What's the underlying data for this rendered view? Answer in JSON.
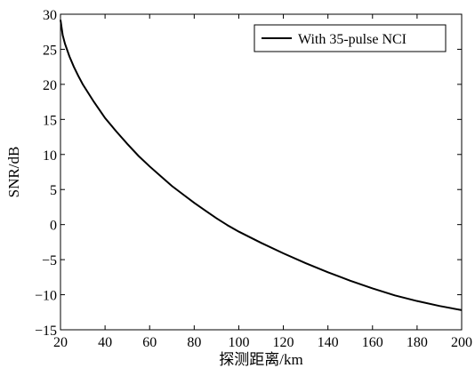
{
  "chart_data": {
    "type": "line",
    "title": "",
    "xlabel": "探测距离/km",
    "ylabel": "SNR/dB",
    "xlim": [
      20,
      200
    ],
    "ylim": [
      -15,
      30
    ],
    "x_ticks": [
      20,
      40,
      60,
      80,
      100,
      120,
      140,
      160,
      180,
      200
    ],
    "y_ticks": [
      -15,
      -10,
      -5,
      0,
      5,
      10,
      15,
      20,
      25,
      30
    ],
    "x_tick_labels": [
      "20",
      "40",
      "60",
      "80",
      "100",
      "120",
      "140",
      "160",
      "180",
      "200"
    ],
    "y_tick_labels": [
      "−15",
      "−10",
      "−5",
      "0",
      "5",
      "10",
      "15",
      "20",
      "25",
      "30"
    ],
    "grid": false,
    "legend_position": "top-right",
    "series": [
      {
        "name": "With 35-pulse NCI",
        "color": "#000000",
        "x": [
          20,
          21,
          22,
          24,
          26,
          28,
          30,
          35,
          40,
          45,
          50,
          55,
          60,
          65,
          70,
          75,
          80,
          85,
          90,
          95,
          100,
          110,
          120,
          130,
          140,
          150,
          160,
          170,
          180,
          190,
          200
        ],
        "y": [
          29.2,
          27.0,
          25.8,
          24.0,
          22.5,
          21.2,
          20.0,
          17.5,
          15.2,
          13.3,
          11.5,
          9.8,
          8.3,
          6.9,
          5.5,
          4.3,
          3.1,
          2.0,
          0.9,
          -0.1,
          -1.0,
          -2.6,
          -4.1,
          -5.5,
          -6.8,
          -8.0,
          -9.1,
          -10.1,
          -10.9,
          -11.6,
          -12.2
        ]
      }
    ]
  }
}
